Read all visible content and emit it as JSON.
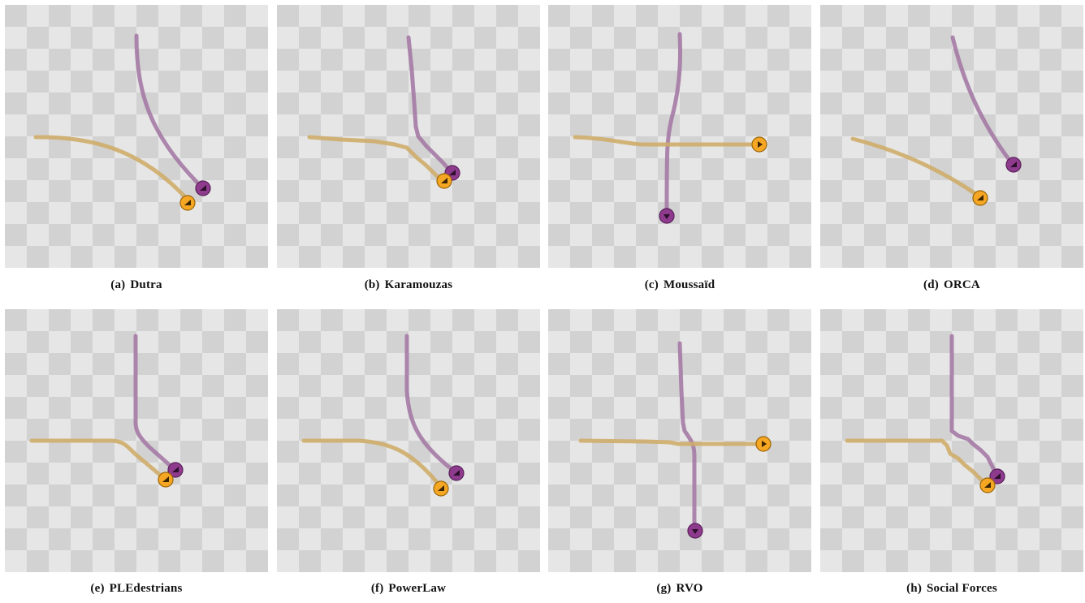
{
  "colors": {
    "tile_light": "#e6e6e6",
    "tile_dark": "#d2d2d2",
    "agent_orange": "#f5a623",
    "trail_orange": "#cfad6a",
    "agent_purple": "#8e3b8e",
    "trail_purple": "#a47aa4"
  },
  "panels": [
    {
      "tag": "(a)",
      "label": "Dutra"
    },
    {
      "tag": "(b)",
      "label": "Karamouzas"
    },
    {
      "tag": "(c)",
      "label": "Moussaïd"
    },
    {
      "tag": "(d)",
      "label": "ORCA"
    },
    {
      "tag": "(e)",
      "label": "PLEdestrians"
    },
    {
      "tag": "(f)",
      "label": "PowerLaw"
    },
    {
      "tag": "(g)",
      "label": "RVO"
    },
    {
      "tag": "(h)",
      "label": "Social Forces"
    }
  ]
}
